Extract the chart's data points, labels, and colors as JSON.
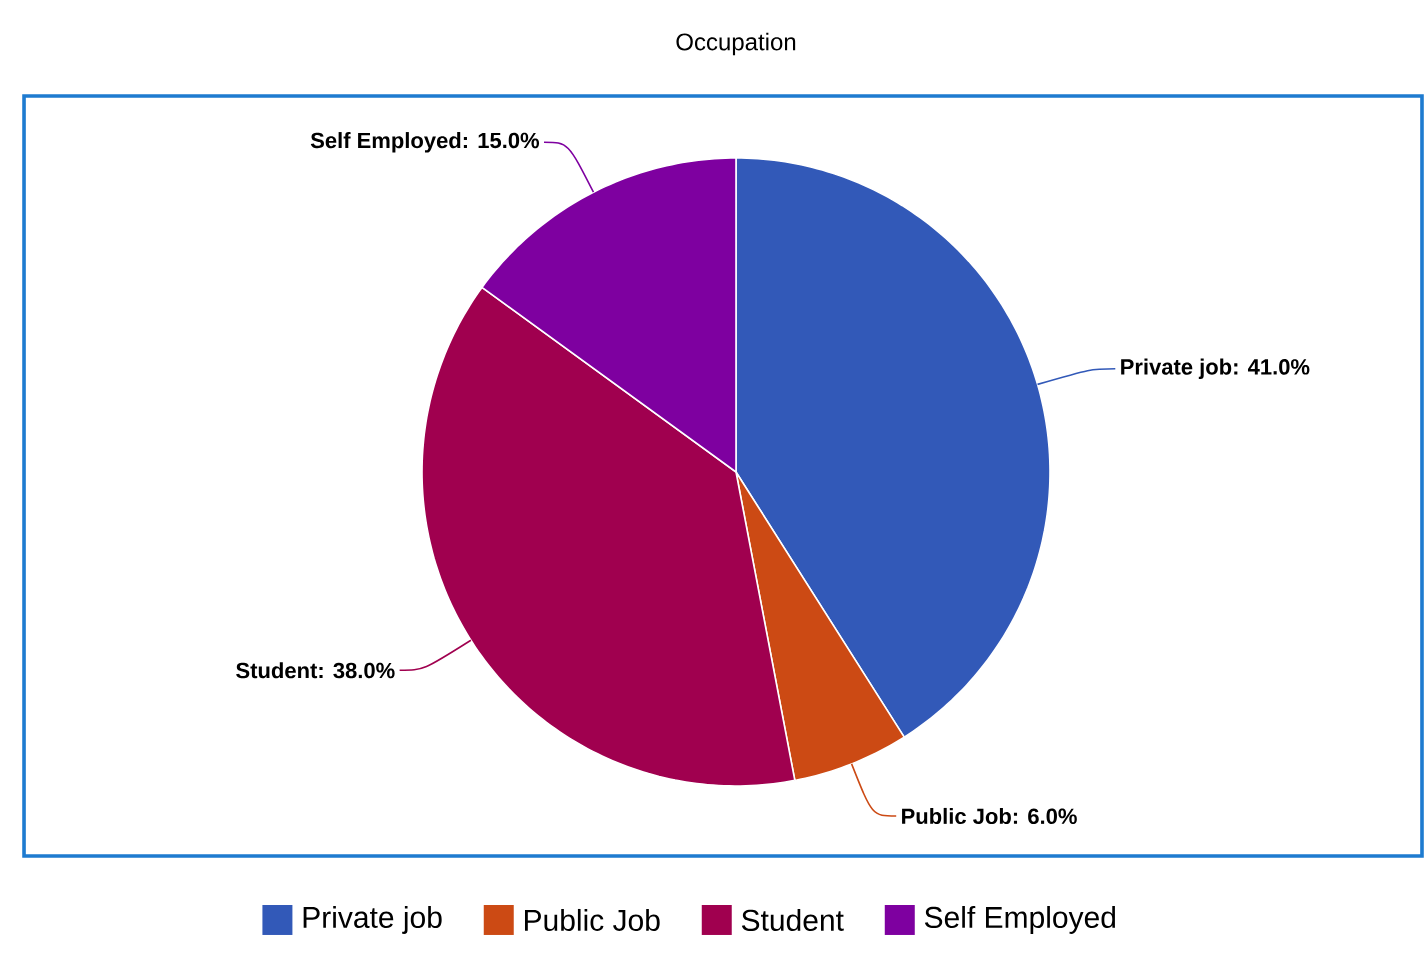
{
  "chart_data": {
    "type": "pie",
    "title": "Occupation",
    "categories": [
      "Private job",
      "Public Job",
      "Student",
      "Self Employed"
    ],
    "values": [
      41,
      6,
      38,
      15
    ],
    "colors": [
      "#3259b8",
      "#cc4a14",
      "#a0004f",
      "#7e00a0"
    ],
    "value_labels": [
      "Private job: 41.0%",
      "Public Job: 6.0%",
      "Student: 38.0%",
      "Self Employed: 15.0%"
    ],
    "legend": "bottom"
  }
}
